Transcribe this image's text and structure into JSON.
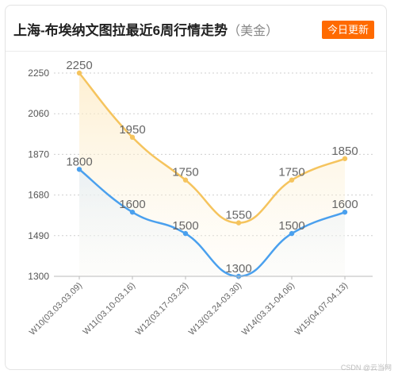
{
  "header": {
    "title": "上海-布埃纳文图拉最近6周行情走势",
    "unit": "（美金）",
    "badge": "今日更新"
  },
  "watermark": "CSDN @云当网",
  "colors": {
    "series_a": "#f5c45e",
    "series_b": "#4aa0ee",
    "badge": "#ff6a00"
  },
  "chart_data": {
    "type": "line",
    "title": "上海-布埃纳文图拉最近6周行情走势（美金）",
    "categories": [
      "W10(03.03-03.09)",
      "W11(03.10-03.16)",
      "W12(03.17-03.23)",
      "W13(03.24-03.30)",
      "W14(03.31-04.06)",
      "W15(04.07-04.13)"
    ],
    "series": [
      {
        "values": [
          2250,
          1950,
          1750,
          1550,
          1750,
          1850
        ]
      },
      {
        "values": [
          1800,
          1600,
          1500,
          1300,
          1500,
          1600
        ]
      }
    ],
    "ylim": [
      1300,
      2250
    ],
    "yticks": [
      1300,
      1490,
      1680,
      1870,
      2060,
      2250
    ],
    "grid": true,
    "smooth": true,
    "data_labels": true
  }
}
